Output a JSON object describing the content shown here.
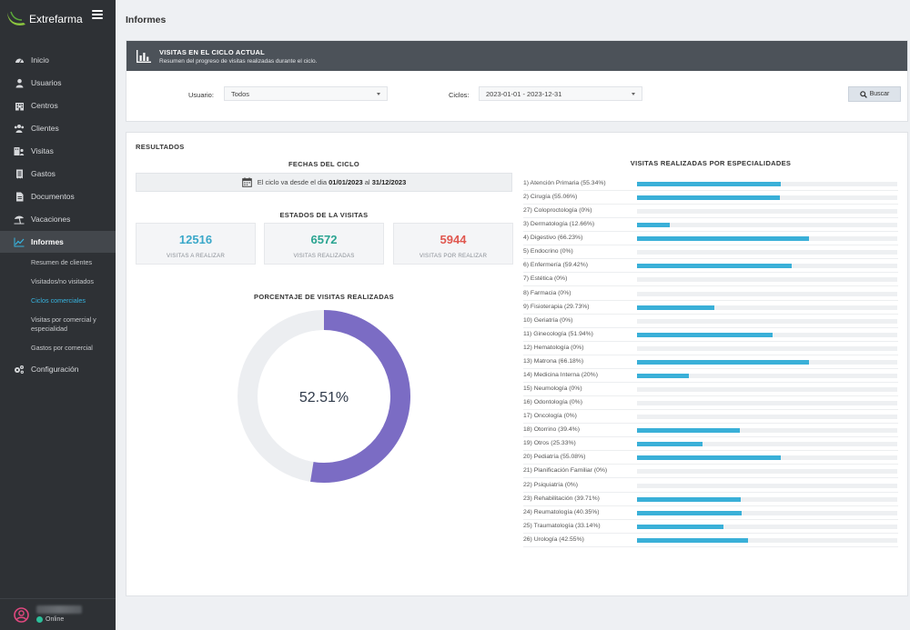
{
  "brand": {
    "name": "Extrefarma"
  },
  "nav": [
    {
      "label": "Inicio",
      "icon": "dashboard-icon"
    },
    {
      "label": "Usuarios",
      "icon": "user-icon"
    },
    {
      "label": "Centros",
      "icon": "building-icon"
    },
    {
      "label": "Clientes",
      "icon": "users-icon"
    },
    {
      "label": "Visitas",
      "icon": "visits-icon"
    },
    {
      "label": "Gastos",
      "icon": "receipt-icon"
    },
    {
      "label": "Documentos",
      "icon": "document-icon"
    },
    {
      "label": "Vacaciones",
      "icon": "beach-icon"
    },
    {
      "label": "Informes",
      "icon": "chart-icon",
      "active": true
    },
    {
      "label": "Configuración",
      "icon": "gears-icon"
    }
  ],
  "subnav": [
    {
      "label": "Resumen de clientes"
    },
    {
      "label": "Visitados/no visitados"
    },
    {
      "label": "Ciclos comerciales",
      "current": true
    },
    {
      "label": "Visitas por comercial y especialidad"
    },
    {
      "label": "Gastos por comercial"
    }
  ],
  "user": {
    "status": "Online"
  },
  "page": {
    "title": "Informes"
  },
  "header": {
    "title": "VISITAS EN EL CICLO ACTUAL",
    "subtitle": "Resumen del progreso de visitas realizadas durante el ciclo."
  },
  "filters": {
    "usuario_label": "Usuario:",
    "usuario_value": "Todos",
    "ciclos_label": "Ciclos:",
    "ciclos_value": "2023-01-01 - 2023-12-31",
    "search_label": "Buscar"
  },
  "results": {
    "title": "RESULTADOS",
    "fechas_title": "FECHAS DEL CICLO",
    "cycle_text_a": "El ciclo va desde el dia",
    "cycle_start": "01/01/2023",
    "cycle_text_b": "al",
    "cycle_end": "31/12/2023",
    "estados_title": "ESTADOS DE LA VISITAS",
    "stats": [
      {
        "value": "12516",
        "caption": "VISITAS A REALIZAR",
        "color": "#3aa8c9"
      },
      {
        "value": "6572",
        "caption": "VISITAS REALIZADAS",
        "color": "#2aa491"
      },
      {
        "value": "5944",
        "caption": "VISITAS POR REALIZAR",
        "color": "#e0574f"
      }
    ],
    "porcentaje_title": "PORCENTAJE DE VISITAS REALIZADAS",
    "percent_label": "52.51%",
    "percent_value": 52.51,
    "especialidades_title": "VISITAS REALIZADAS POR ESPECIALIDADES"
  },
  "chart_data": [
    {
      "type": "pie",
      "title": "PORCENTAJE DE VISITAS REALIZADAS",
      "values": [
        52.51,
        47.49
      ],
      "colors": [
        "#7b6cc4",
        "#eceef1"
      ],
      "center_label": "52.51%"
    },
    {
      "type": "bar",
      "orientation": "horizontal",
      "title": "VISITAS REALIZADAS POR ESPECIALIDADES",
      "xlim": [
        0,
        100
      ],
      "categories": [
        "1) Atención Primaria (55.34%)",
        "2) Cirugía (55.06%)",
        "27) Coloproctología (0%)",
        "3) Dermatología (12.66%)",
        "4) Digestivo (66.23%)",
        "5) Endocrino (0%)",
        "6) Enfermería (59.42%)",
        "7) Estética (0%)",
        "8) Farmacia (0%)",
        "9) Fisioterapia (29.73%)",
        "10) Geriatría (0%)",
        "11) Ginecología (51.94%)",
        "12) Hematología (0%)",
        "13) Matrona (66.18%)",
        "14) Medicina Interna (20%)",
        "15) Neumología (0%)",
        "16) Odontología (0%)",
        "17) Oncología (0%)",
        "18) Otorrino (39.4%)",
        "19) Otros (25.33%)",
        "20) Pediatría (55.08%)",
        "21) Planificación Familiar (0%)",
        "22) Psiquiatría (0%)",
        "23) Rehabilitación (39.71%)",
        "24) Reumatología (40.35%)",
        "25) Traumatología (33.14%)",
        "26) Urología (42.55%)"
      ],
      "values": [
        55.34,
        55.06,
        0,
        12.66,
        66.23,
        0,
        59.42,
        0,
        0,
        29.73,
        0,
        51.94,
        0,
        66.18,
        20,
        0,
        0,
        0,
        39.4,
        25.33,
        55.08,
        0,
        0,
        39.71,
        40.35,
        33.14,
        42.55
      ],
      "color": "#3ab0d8"
    }
  ]
}
